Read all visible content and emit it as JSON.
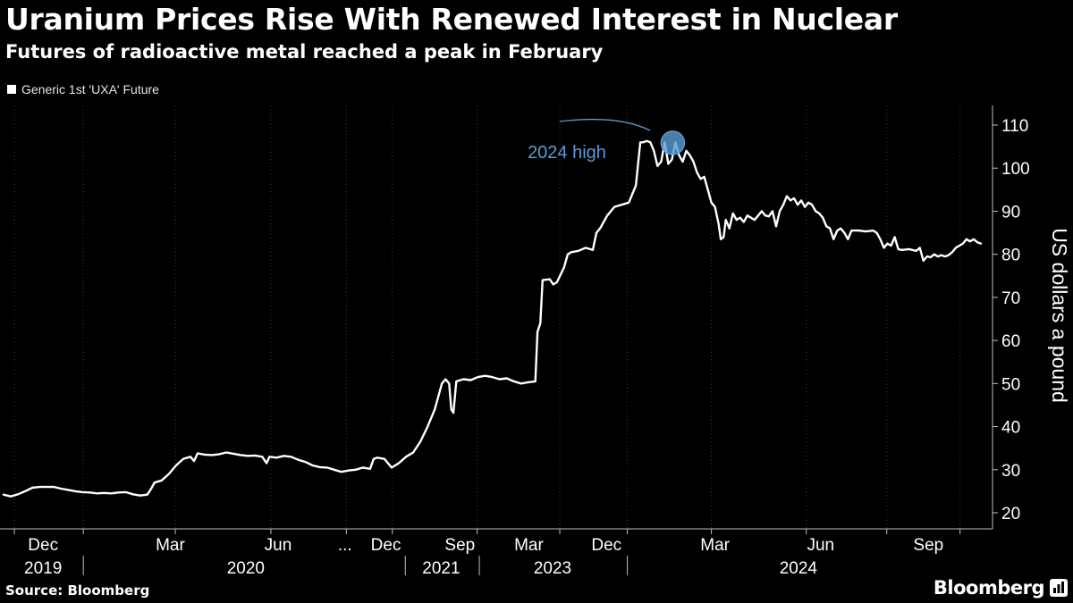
{
  "header": {
    "title": "Uranium Prices Rise With Renewed Interest in Nuclear",
    "subtitle": "Futures of radioactive metal reached a peak in February"
  },
  "legend": {
    "label": "Generic 1st 'UXA' Future"
  },
  "footer": {
    "source": "Source: Bloomberg",
    "brand": "Bloomberg"
  },
  "colors": {
    "background": "#000000",
    "line": "#ffffff",
    "grid": "#3a3a3a",
    "annotation": "#5b9bd5"
  },
  "chart_data": {
    "type": "line",
    "title": "Uranium Prices Rise With Renewed Interest in Nuclear",
    "subtitle": "Futures of radioactive metal reached a peak in February",
    "ylabel": "US dollars a pound",
    "ylim": [
      17,
      112
    ],
    "yticks": [
      20,
      30,
      40,
      50,
      60,
      70,
      80,
      90,
      100,
      110
    ],
    "y_axis_side": "right",
    "grid": "vertical dotted",
    "series": [
      {
        "name": "Generic 1st 'UXA' Future",
        "points": [
          [
            0,
            24.2
          ],
          [
            1,
            23.8
          ],
          [
            2,
            24.3
          ],
          [
            3,
            25.0
          ],
          [
            4,
            25.8
          ],
          [
            5,
            26.0
          ],
          [
            6,
            26.0
          ],
          [
            7,
            26.0
          ],
          [
            8,
            25.6
          ],
          [
            9,
            25.3
          ],
          [
            10,
            25.0
          ],
          [
            11,
            24.8
          ],
          [
            12,
            24.7
          ],
          [
            13,
            24.5
          ],
          [
            14,
            24.6
          ],
          [
            15,
            24.5
          ],
          [
            16,
            24.7
          ],
          [
            17,
            24.8
          ],
          [
            18,
            24.3
          ],
          [
            19,
            24.0
          ],
          [
            20,
            24.2
          ],
          [
            20.5,
            25.5
          ],
          [
            21,
            27.0
          ],
          [
            22,
            27.5
          ],
          [
            23,
            29.0
          ],
          [
            24,
            31.0
          ],
          [
            25,
            32.5
          ],
          [
            26,
            33.0
          ],
          [
            26.5,
            32.0
          ],
          [
            27,
            33.8
          ],
          [
            28,
            33.5
          ],
          [
            29,
            33.4
          ],
          [
            30,
            33.6
          ],
          [
            31,
            34.0
          ],
          [
            32,
            33.7
          ],
          [
            33,
            33.4
          ],
          [
            34,
            33.2
          ],
          [
            35,
            33.3
          ],
          [
            36,
            33.0
          ],
          [
            36.6,
            31.5
          ],
          [
            37,
            33.0
          ],
          [
            38,
            32.8
          ],
          [
            39,
            33.2
          ],
          [
            40,
            33.0
          ],
          [
            41,
            32.3
          ],
          [
            42,
            31.8
          ],
          [
            43,
            31.0
          ],
          [
            44,
            30.6
          ],
          [
            45,
            30.5
          ],
          [
            46,
            30.0
          ],
          [
            47,
            29.5
          ],
          [
            48,
            29.8
          ],
          [
            49,
            30.0
          ],
          [
            50,
            30.5
          ],
          [
            51,
            30.2
          ],
          [
            51.5,
            32.5
          ],
          [
            52,
            32.8
          ],
          [
            53,
            32.5
          ],
          [
            54,
            30.5
          ],
          [
            55,
            31.5
          ],
          [
            56,
            33.0
          ],
          [
            57,
            34.0
          ],
          [
            58,
            36.5
          ],
          [
            59,
            40.0
          ],
          [
            59.5,
            42.0
          ],
          [
            60,
            44.0
          ],
          [
            60.5,
            47.0
          ],
          [
            61,
            50.0
          ],
          [
            61.5,
            51.0
          ],
          [
            62,
            50.0
          ],
          [
            62.3,
            44.0
          ],
          [
            62.6,
            43.2
          ],
          [
            63,
            50.5
          ],
          [
            64,
            51.0
          ],
          [
            65,
            50.8
          ],
          [
            66,
            51.5
          ],
          [
            67,
            51.8
          ],
          [
            68,
            51.5
          ],
          [
            69,
            51.0
          ],
          [
            70,
            51.2
          ],
          [
            71,
            50.5
          ],
          [
            72,
            50.0
          ],
          [
            73,
            50.3
          ],
          [
            74,
            50.5
          ],
          [
            74.3,
            62.0
          ],
          [
            74.7,
            64.0
          ],
          [
            75,
            74.0
          ],
          [
            76,
            74.2
          ],
          [
            76.5,
            73.0
          ],
          [
            77,
            73.5
          ],
          [
            78,
            77.0
          ],
          [
            78.5,
            80.0
          ],
          [
            79,
            80.5
          ],
          [
            80,
            80.8
          ],
          [
            81,
            81.5
          ],
          [
            82,
            81.0
          ],
          [
            82.5,
            85.0
          ],
          [
            83,
            86.0
          ],
          [
            84,
            89.0
          ],
          [
            85,
            91.0
          ],
          [
            86,
            91.5
          ],
          [
            87,
            92.0
          ],
          [
            87.5,
            94.0
          ],
          [
            88,
            96.0
          ],
          [
            88.3,
            101.0
          ],
          [
            88.6,
            106.0
          ],
          [
            89,
            106.0
          ],
          [
            89.5,
            106.3
          ],
          [
            90,
            106.0
          ],
          [
            90.5,
            104.0
          ],
          [
            91,
            100.5
          ],
          [
            91.5,
            101.5
          ],
          [
            92,
            106.0
          ],
          [
            92.5,
            101.0
          ],
          [
            93,
            102.0
          ],
          [
            93.5,
            106.0
          ],
          [
            94,
            103.0
          ],
          [
            94.5,
            101.5
          ],
          [
            95,
            104.0
          ],
          [
            95.5,
            103.0
          ],
          [
            96,
            101.5
          ],
          [
            96.5,
            99.0
          ],
          [
            97,
            97.5
          ],
          [
            97.5,
            98.0
          ],
          [
            98,
            95.0
          ],
          [
            98.5,
            92.0
          ],
          [
            99,
            91.0
          ],
          [
            99.5,
            87.0
          ],
          [
            99.8,
            83.5
          ],
          [
            100.2,
            84.0
          ],
          [
            100.5,
            88.0
          ],
          [
            101,
            86.0
          ],
          [
            101.5,
            89.5
          ],
          [
            102,
            88.0
          ],
          [
            102.5,
            88.5
          ],
          [
            103,
            87.5
          ],
          [
            103.5,
            89.0
          ],
          [
            104,
            88.5
          ],
          [
            104.5,
            88.0
          ],
          [
            105,
            89.0
          ],
          [
            105.5,
            90.0
          ],
          [
            106,
            89.0
          ],
          [
            106.5,
            88.8
          ],
          [
            107,
            90.0
          ],
          [
            107.5,
            86.5
          ],
          [
            108,
            90.0
          ],
          [
            108.5,
            91.5
          ],
          [
            109,
            93.5
          ],
          [
            109.5,
            92.5
          ],
          [
            110,
            93.0
          ],
          [
            110.5,
            91.5
          ],
          [
            111,
            92.5
          ],
          [
            111.5,
            91.0
          ],
          [
            112,
            92.0
          ],
          [
            112.5,
            91.5
          ],
          [
            113,
            90.0
          ],
          [
            113.5,
            89.5
          ],
          [
            114,
            88.5
          ],
          [
            114.5,
            86.5
          ],
          [
            115,
            86.0
          ],
          [
            115.5,
            83.5
          ],
          [
            116,
            85.5
          ],
          [
            116.5,
            86.0
          ],
          [
            117,
            85.0
          ],
          [
            117.5,
            83.5
          ],
          [
            118,
            85.5
          ],
          [
            119,
            85.5
          ],
          [
            120,
            85.3
          ],
          [
            121,
            85.5
          ],
          [
            121.5,
            85.0
          ],
          [
            122,
            83.5
          ],
          [
            122.5,
            81.5
          ],
          [
            123,
            82.5
          ],
          [
            123.5,
            82.0
          ],
          [
            124,
            84.0
          ],
          [
            124.5,
            81.2
          ],
          [
            125,
            81.0
          ],
          [
            126,
            81.2
          ],
          [
            127,
            80.8
          ],
          [
            127.5,
            81.5
          ],
          [
            128,
            78.5
          ],
          [
            128.5,
            79.5
          ],
          [
            129,
            79.3
          ],
          [
            129.5,
            80.0
          ],
          [
            130,
            79.5
          ],
          [
            130.5,
            79.8
          ],
          [
            131,
            79.5
          ],
          [
            131.5,
            79.8
          ],
          [
            132,
            80.5
          ],
          [
            132.5,
            81.5
          ],
          [
            133,
            82.0
          ],
          [
            133.5,
            82.5
          ],
          [
            134,
            83.5
          ],
          [
            134.5,
            83.0
          ],
          [
            135,
            83.5
          ],
          [
            135.5,
            82.8
          ],
          [
            136,
            82.5
          ]
        ]
      }
    ],
    "x_ticks": [
      {
        "i": 5.5,
        "label": "Dec"
      },
      {
        "i": 23.2,
        "label": "Mar"
      },
      {
        "i": 38.2,
        "label": "Jun"
      },
      {
        "i": 47.5,
        "label": "..."
      },
      {
        "i": 53.2,
        "label": "Dec"
      },
      {
        "i": 63.5,
        "label": "Sep"
      },
      {
        "i": 73.1,
        "label": "Mar"
      },
      {
        "i": 83.9,
        "label": "Dec"
      },
      {
        "i": 99.0,
        "label": "Mar"
      },
      {
        "i": 113.7,
        "label": "Jun"
      },
      {
        "i": 128.7,
        "label": "Sep"
      }
    ],
    "x_tick_marks": [
      1.5,
      11.1,
      23.9,
      37.2,
      47.7,
      54.1,
      65.9,
      77.4,
      86.8,
      98.5,
      111.7,
      122.9,
      133.1
    ],
    "year_labels": [
      {
        "i": 5.5,
        "label": "2019"
      },
      {
        "i": 33.7,
        "label": "2020"
      },
      {
        "i": 60.9,
        "label": "2021"
      },
      {
        "i": 76.4,
        "label": "2023"
      },
      {
        "i": 110.6,
        "label": "2024"
      }
    ],
    "year_separators": [
      11.1,
      55.9,
      66.2,
      86.8
    ],
    "annotations": [
      {
        "label": "2024 high",
        "i": 92.0,
        "y": 106.3
      }
    ]
  }
}
